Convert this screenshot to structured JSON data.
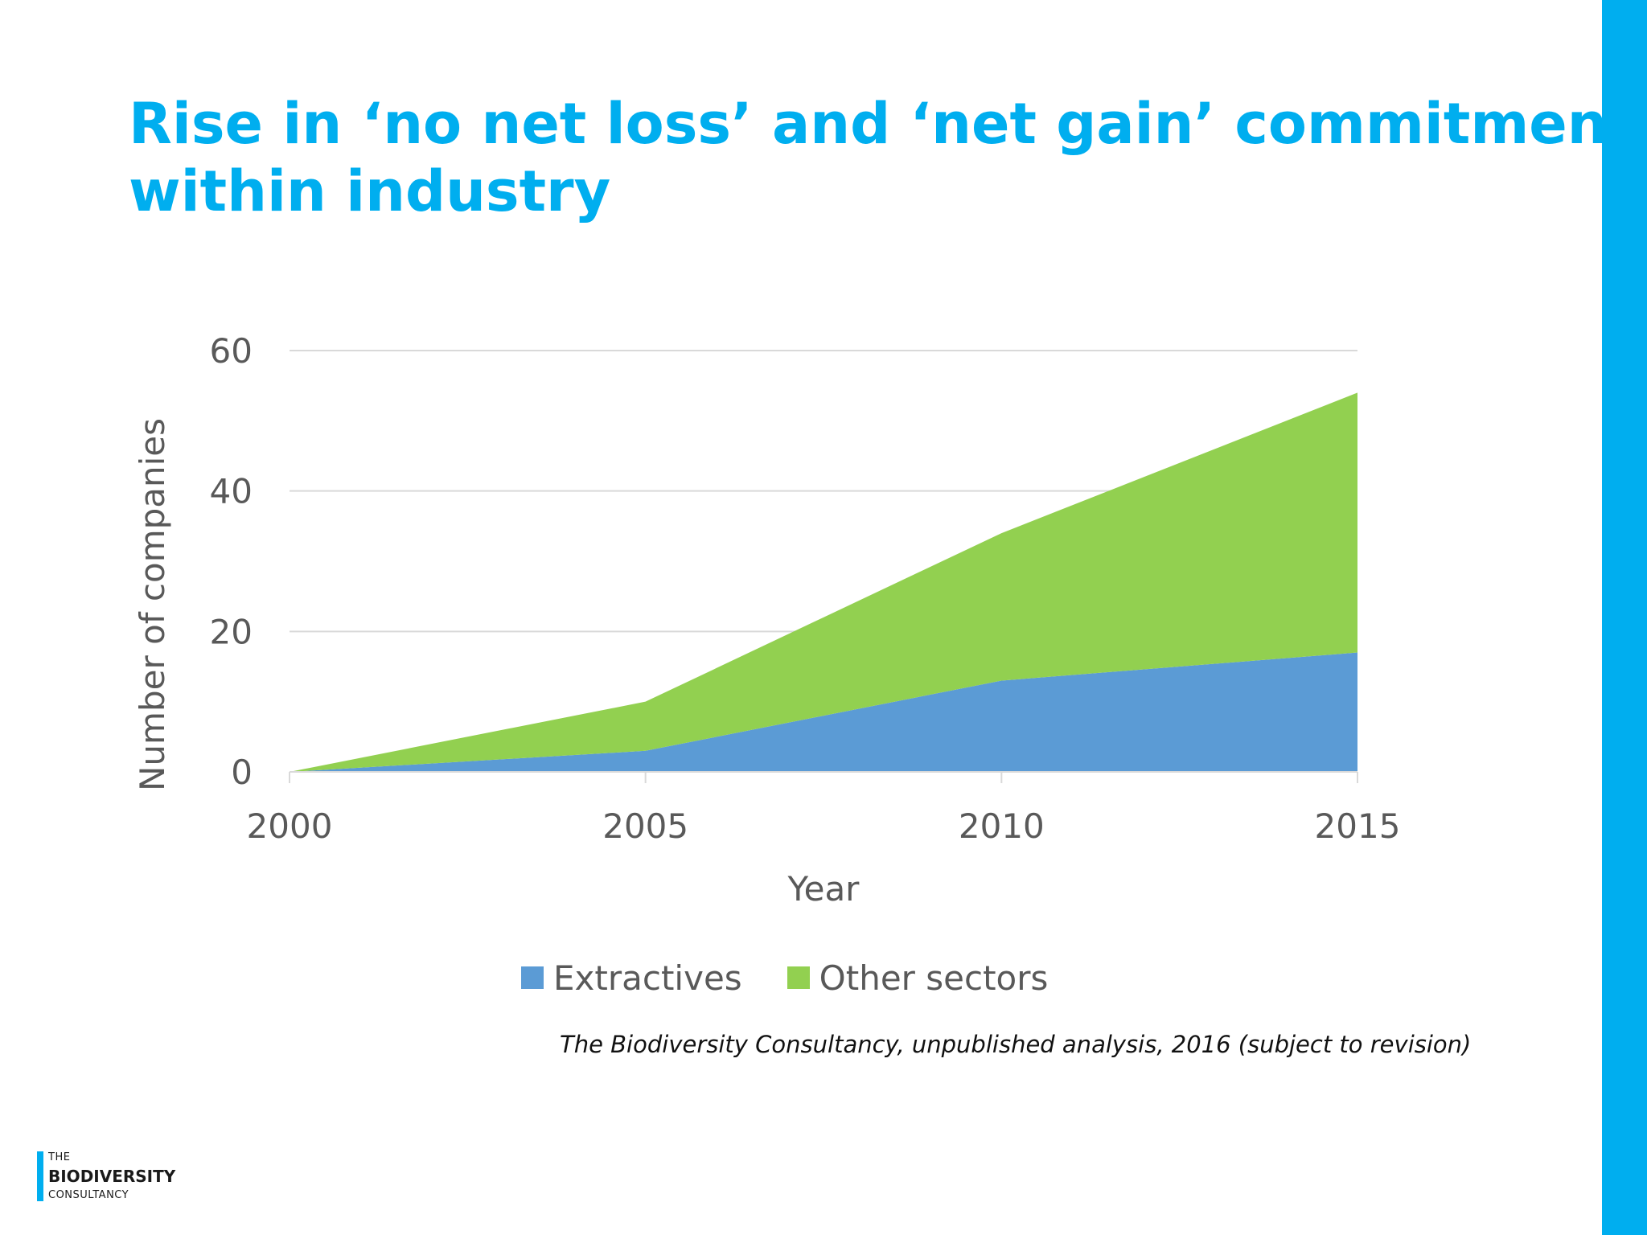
{
  "slide": {
    "title_line1": "Rise in ‘no net loss’ and ‘net gain’ commitments",
    "title_line2": "within industry",
    "source": "The Biodiversity Consultancy, unpublished analysis, 2016 (subject to revision)",
    "logo": {
      "line1": "THE",
      "line2": "BIODIVERSITY",
      "line3": "CONSULTANCY"
    },
    "colors": {
      "accent": "#00aeef",
      "extractives": "#5b9bd5",
      "other": "#92d050"
    }
  },
  "chart_data": {
    "type": "area",
    "stacked": true,
    "title": "",
    "xlabel": "Year",
    "ylabel": "Number of companies",
    "x": [
      2000,
      2005,
      2010,
      2015
    ],
    "x_tick_labels": [
      "2000",
      "2005",
      "2010",
      "2015"
    ],
    "y_ticks": [
      0,
      20,
      40,
      60
    ],
    "y_tick_labels": [
      "0",
      "20",
      "40",
      "60"
    ],
    "ylim": [
      0,
      60
    ],
    "grid": true,
    "legend": "bottom",
    "series": [
      {
        "name": "Extractives",
        "values": [
          0,
          3,
          13,
          17
        ],
        "color": "#5b9bd5"
      },
      {
        "name": "Other sectors",
        "values": [
          0,
          7,
          21,
          37
        ],
        "color": "#92d050"
      }
    ]
  }
}
